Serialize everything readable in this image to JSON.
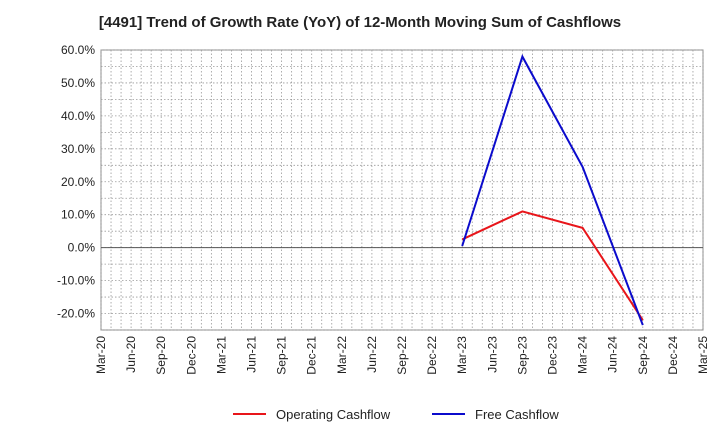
{
  "chart_data": {
    "type": "line",
    "title": "[4491]  Trend of Growth Rate (YoY) of 12-Month Moving Sum of Cashflows",
    "xlabel": "",
    "ylabel": "",
    "ylim": [
      -25,
      60
    ],
    "y_ticks": [
      60,
      50,
      40,
      30,
      20,
      10,
      0,
      -10,
      -20
    ],
    "y_tick_labels": [
      "60.0%",
      "50.0%",
      "40.0%",
      "30.0%",
      "20.0%",
      "10.0%",
      "0.0%",
      "-10.0%",
      "-20.0%"
    ],
    "categories": [
      "Mar-20",
      "Jun-20",
      "Sep-20",
      "Dec-20",
      "Mar-21",
      "Jun-21",
      "Sep-21",
      "Dec-21",
      "Mar-22",
      "Jun-22",
      "Sep-22",
      "Dec-22",
      "Mar-23",
      "Jun-23",
      "Sep-23",
      "Dec-23",
      "Mar-24",
      "Jun-24",
      "Sep-24",
      "Dec-24",
      "Mar-25"
    ],
    "grid": true,
    "legend_position": "bottom",
    "series": [
      {
        "name": "Operating Cashflow",
        "color": "#e8151a",
        "points": [
          {
            "x": "Mar-23",
            "y": 2.5
          },
          {
            "x": "Sep-23",
            "y": 11.0
          },
          {
            "x": "Mar-24",
            "y": 6.0
          },
          {
            "x": "Sep-24",
            "y": -22.0
          }
        ]
      },
      {
        "name": "Free Cashflow",
        "color": "#0b0bcc",
        "points": [
          {
            "x": "Mar-23",
            "y": 0.5
          },
          {
            "x": "Sep-23",
            "y": 58.0
          },
          {
            "x": "Mar-24",
            "y": 24.5
          },
          {
            "x": "Sep-24",
            "y": -23.5
          }
        ]
      }
    ]
  }
}
